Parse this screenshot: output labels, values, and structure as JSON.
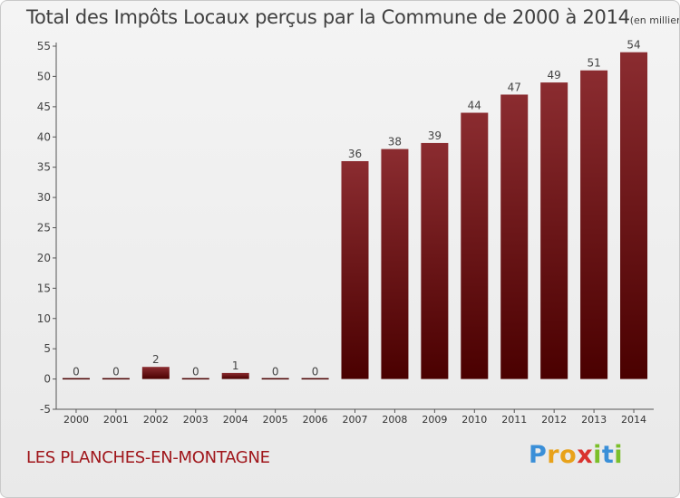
{
  "chart_data": {
    "type": "bar",
    "title": "Total des Impôts Locaux perçus par la Commune de 2000 à 2014",
    "unit_label": "(en milliers d'€)",
    "categories": [
      "2000",
      "2001",
      "2002",
      "2003",
      "2004",
      "2005",
      "2006",
      "2007",
      "2008",
      "2009",
      "2010",
      "2011",
      "2012",
      "2013",
      "2014"
    ],
    "values": [
      0,
      0,
      2,
      0,
      1,
      0,
      0,
      36,
      38,
      39,
      44,
      47,
      49,
      51,
      54
    ],
    "ylim": [
      -5,
      55
    ],
    "yticks": [
      -5,
      0,
      5,
      10,
      15,
      20,
      25,
      30,
      35,
      40,
      45,
      50,
      55
    ],
    "xlabel": "",
    "ylabel": "",
    "grid": false,
    "bar_color_top": "#8b2c30",
    "bar_color_bottom": "#4a0000"
  },
  "footer": {
    "commune": "LES PLANCHES-EN-MONTAGNE"
  },
  "logo": {
    "letters": [
      "P",
      "r",
      "o",
      "x",
      "i",
      "t",
      "i"
    ]
  }
}
